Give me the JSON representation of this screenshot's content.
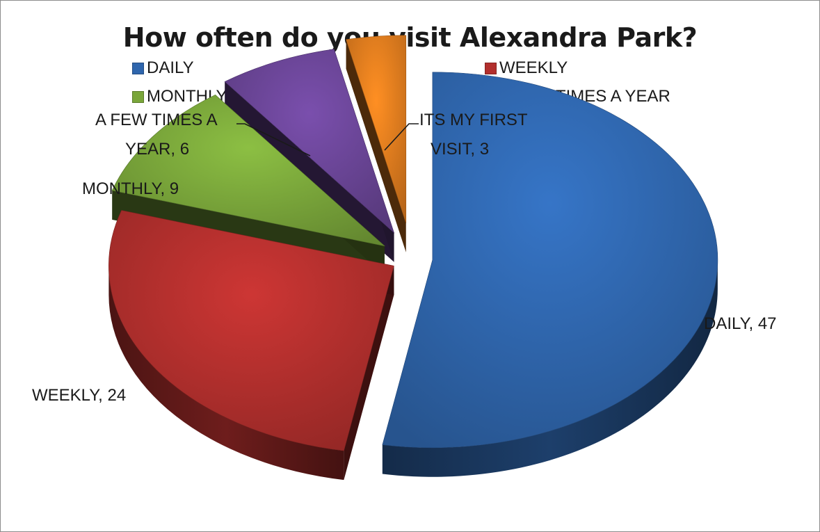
{
  "chart_data": {
    "type": "pie",
    "title": "How often do you visit Alexandra Park?",
    "categories": [
      "DAILY",
      "WEEKLY",
      "MONTHLY",
      "A FEW TIMES A YEAR",
      "ITS MY FIRST VISIT"
    ],
    "values": [
      47,
      24,
      9,
      6,
      3
    ],
    "colors": [
      "#2f66ad",
      "#b22f2d",
      "#7aa63a",
      "#6a4596",
      "#e07c1e"
    ],
    "legend_position": "top",
    "legend_entries": [
      "DAILY",
      "WEEKLY",
      "MONTHLY",
      "A FEW TIMES A YEAR"
    ],
    "exploded": true,
    "style": "3d",
    "data_labels": [
      [
        "DAILY, 47"
      ],
      [
        "WEEKLY, 24"
      ],
      [
        "MONTHLY, 9"
      ],
      [
        "A FEW TIMES A",
        "YEAR, 6"
      ],
      [
        "ITS MY FIRST",
        "VISIT, 3"
      ]
    ]
  }
}
